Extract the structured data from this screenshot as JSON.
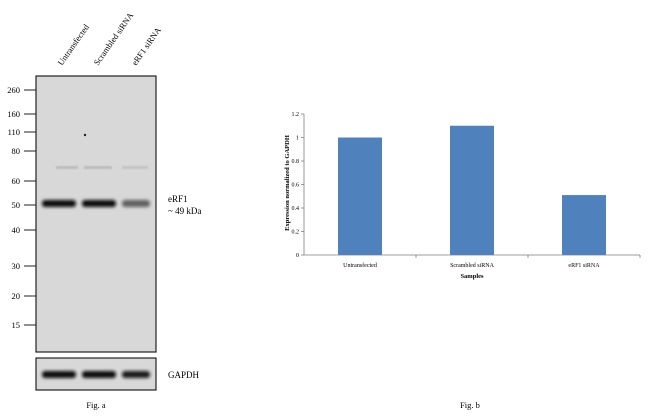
{
  "fig_a": {
    "lane_labels": [
      "Untransfected",
      "Scrambled siRNA",
      "eRF1 siRNA"
    ],
    "marker_labels": [
      "260",
      "160",
      "110",
      "80",
      "60",
      "50",
      "40",
      "30",
      "20",
      "15"
    ],
    "band_label": "eRF1",
    "band_size": "~ 49 kDa",
    "loading_control_label": "GAPDH",
    "caption": "Fig. a",
    "band_intensity": [
      1.0,
      1.0,
      0.45
    ],
    "gapdh_intensity": [
      1.0,
      1.0,
      0.9
    ],
    "colors": {
      "blot_bg": "#d9d9d9",
      "band": "#1a1a1a",
      "frame": "#222222"
    }
  },
  "chart_data": {
    "type": "bar",
    "categories": [
      "Untransfected",
      "Scrambled siRNA",
      "eRF1 siRNA"
    ],
    "values": [
      1.0,
      1.1,
      0.51
    ],
    "title": "",
    "xlabel": "Samples",
    "ylabel": "Expression normalized to GAPDH",
    "ylim": [
      0,
      1.2
    ],
    "yticks": [
      "0",
      "0.2",
      "0.4",
      "0.6",
      "0.8",
      "1",
      "1.2"
    ],
    "grid": false,
    "legend": "none",
    "bar_color": "#4f81bd",
    "caption": "Fig. b"
  }
}
